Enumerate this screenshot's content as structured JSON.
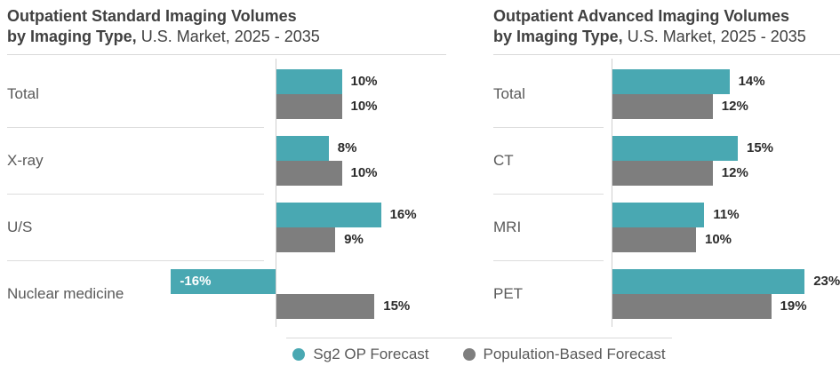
{
  "colors": {
    "teal": "#49a8b2",
    "gray": "#7e7e7e",
    "title_text": "#404040",
    "category_text": "#595959",
    "value_text": "#2b2b2b",
    "negative_value_text": "#ffffff",
    "divider": "#dddddd",
    "axis": "#cfcfcf"
  },
  "legend": {
    "position": "bottom-center",
    "items": [
      {
        "label": "Sg2 OP Forecast",
        "color_key": "teal"
      },
      {
        "label": "Population-Based Forecast",
        "color_key": "gray"
      }
    ]
  },
  "chart_data": [
    {
      "type": "bar",
      "orientation": "horizontal",
      "title": "Outpatient Standard Imaging Volumes by Imaging Type, U.S. Market, 2025 - 2035",
      "title_parts": {
        "line1_bold": "Outpatient Standard Imaging Volumes",
        "line2_bold": "by Imaging Type,",
        "line2_regular": "U.S. Market, 2025 - 2035"
      },
      "categories": [
        "Total",
        "X-ray",
        "U/S",
        "Nuclear medicine"
      ],
      "series": [
        {
          "name": "Sg2 OP Forecast",
          "color_key": "teal",
          "values": [
            10,
            8,
            16,
            -16
          ],
          "labels": [
            "10%",
            "8%",
            "16%",
            "-16%"
          ]
        },
        {
          "name": "Population-Based Forecast",
          "color_key": "gray",
          "values": [
            10,
            10,
            9,
            15
          ],
          "labels": [
            "10%",
            "10%",
            "9%",
            "15%"
          ]
        }
      ],
      "value_suffix": "%",
      "xlim": [
        -16,
        26
      ],
      "grid": false
    },
    {
      "type": "bar",
      "orientation": "horizontal",
      "title": "Outpatient Advanced Imaging Volumes by Imaging Type, U.S. Market, 2025 - 2035",
      "title_parts": {
        "line1_bold": "Outpatient Advanced Imaging Volumes",
        "line2_bold": "by Imaging Type,",
        "line2_regular": "U.S. Market, 2025 - 2035"
      },
      "categories": [
        "Total",
        "CT",
        "MRI",
        "PET"
      ],
      "series": [
        {
          "name": "Sg2 OP Forecast",
          "color_key": "teal",
          "values": [
            14,
            15,
            11,
            23
          ],
          "labels": [
            "14%",
            "15%",
            "11%",
            "23%"
          ]
        },
        {
          "name": "Population-Based Forecast",
          "color_key": "gray",
          "values": [
            12,
            12,
            10,
            19
          ],
          "labels": [
            "12%",
            "12%",
            "10%",
            "19%"
          ]
        }
      ],
      "value_suffix": "%",
      "xlim": [
        0,
        27
      ],
      "grid": false
    }
  ]
}
